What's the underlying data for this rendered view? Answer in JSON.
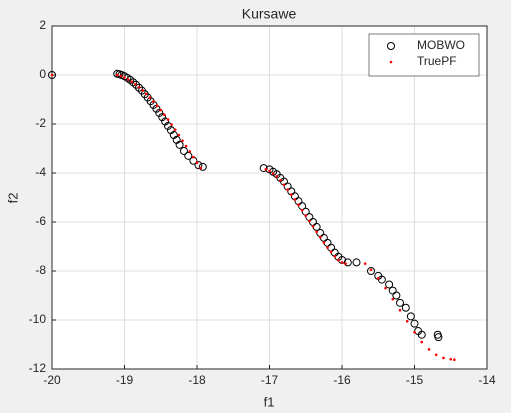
{
  "chart_data": {
    "type": "scatter",
    "title": "Kursawe",
    "xlabel": "f1",
    "ylabel": "f2",
    "xlim": [
      -20,
      -14
    ],
    "ylim": [
      -12,
      2
    ],
    "xticks": [
      -20,
      -19,
      -18,
      -17,
      -16,
      -15,
      -14
    ],
    "yticks": [
      -12,
      -10,
      -8,
      -6,
      -4,
      -2,
      0,
      2
    ],
    "grid": true,
    "legend": "northeast",
    "series": [
      {
        "name": "MOBWO",
        "color": "#000000",
        "marker": "circle",
        "x": [
          -20,
          -19.1,
          -19.07,
          -19.04,
          -19.0,
          -18.96,
          -18.92,
          -18.88,
          -18.84,
          -18.8,
          -18.76,
          -18.72,
          -18.68,
          -18.64,
          -18.6,
          -18.56,
          -18.52,
          -18.48,
          -18.44,
          -18.4,
          -18.36,
          -18.32,
          -18.28,
          -18.24,
          -18.18,
          -18.12,
          -18.05,
          -17.98,
          -17.92,
          -17.08,
          -17.0,
          -16.95,
          -16.9,
          -16.85,
          -16.8,
          -16.75,
          -16.7,
          -16.65,
          -16.6,
          -16.55,
          -16.5,
          -16.45,
          -16.4,
          -16.35,
          -16.3,
          -16.25,
          -16.2,
          -16.15,
          -16.1,
          -16.05,
          -16.0,
          -15.92,
          -15.8,
          -15.6,
          -15.5,
          -15.45,
          -15.35,
          -15.3,
          -15.25,
          -15.2,
          -15.12,
          -15.05,
          -15.0,
          -14.95,
          -14.9,
          -14.68,
          -14.67
        ],
        "values": [
          0,
          0.05,
          0.03,
          0.0,
          -0.05,
          -0.12,
          -0.2,
          -0.3,
          -0.4,
          -0.52,
          -0.64,
          -0.78,
          -0.92,
          -1.07,
          -1.22,
          -1.38,
          -1.55,
          -1.72,
          -1.9,
          -2.08,
          -2.25,
          -2.45,
          -2.65,
          -2.85,
          -3.1,
          -3.3,
          -3.5,
          -3.68,
          -3.75,
          -3.8,
          -3.85,
          -3.95,
          -4.05,
          -4.2,
          -4.35,
          -4.55,
          -4.75,
          -4.95,
          -5.15,
          -5.35,
          -5.58,
          -5.8,
          -6.0,
          -6.2,
          -6.45,
          -6.65,
          -6.85,
          -7.05,
          -7.25,
          -7.42,
          -7.55,
          -7.65,
          -7.65,
          -8.0,
          -8.2,
          -8.35,
          -8.55,
          -8.8,
          -9.0,
          -9.3,
          -9.5,
          -9.85,
          -10.15,
          -10.45,
          -10.6,
          -10.6,
          -10.7
        ]
      },
      {
        "name": "TruePF",
        "color": "#ff0000",
        "marker": "dot",
        "x": [
          -20,
          -19.1,
          -19.05,
          -19.0,
          -18.95,
          -18.9,
          -18.85,
          -18.8,
          -18.75,
          -18.7,
          -18.65,
          -18.6,
          -18.55,
          -18.5,
          -18.45,
          -18.4,
          -18.35,
          -18.3,
          -18.25,
          -18.2,
          -18.15,
          -18.1,
          -18.05,
          -18.0,
          -17.95,
          -17.05,
          -17.0,
          -16.95,
          -16.9,
          -16.85,
          -16.8,
          -16.75,
          -16.7,
          -16.65,
          -16.6,
          -16.55,
          -16.5,
          -16.45,
          -16.4,
          -16.35,
          -16.3,
          -16.25,
          -16.2,
          -16.15,
          -16.1,
          -16.05,
          -16.0,
          -15.95,
          -15.68,
          -15.6,
          -15.5,
          -15.4,
          -15.3,
          -15.2,
          -15.1,
          -15.0,
          -14.9,
          -14.8,
          -14.7,
          -14.6,
          -14.5,
          -14.45
        ],
        "values": [
          0,
          0,
          -0.04,
          -0.1,
          -0.18,
          -0.28,
          -0.38,
          -0.5,
          -0.63,
          -0.77,
          -0.92,
          -1.08,
          -1.25,
          -1.43,
          -1.62,
          -1.82,
          -2.02,
          -2.23,
          -2.45,
          -2.68,
          -2.9,
          -3.12,
          -3.35,
          -3.58,
          -3.8,
          -3.85,
          -3.92,
          -4.02,
          -4.14,
          -4.3,
          -4.48,
          -4.68,
          -4.88,
          -5.08,
          -5.3,
          -5.52,
          -5.74,
          -5.96,
          -6.18,
          -6.4,
          -6.62,
          -6.84,
          -7.04,
          -7.22,
          -7.4,
          -7.55,
          -7.65,
          -7.7,
          -7.7,
          -7.95,
          -8.3,
          -8.7,
          -9.15,
          -9.6,
          -10.05,
          -10.5,
          -10.9,
          -11.2,
          -11.42,
          -11.55,
          -11.6,
          -11.62
        ]
      }
    ]
  }
}
